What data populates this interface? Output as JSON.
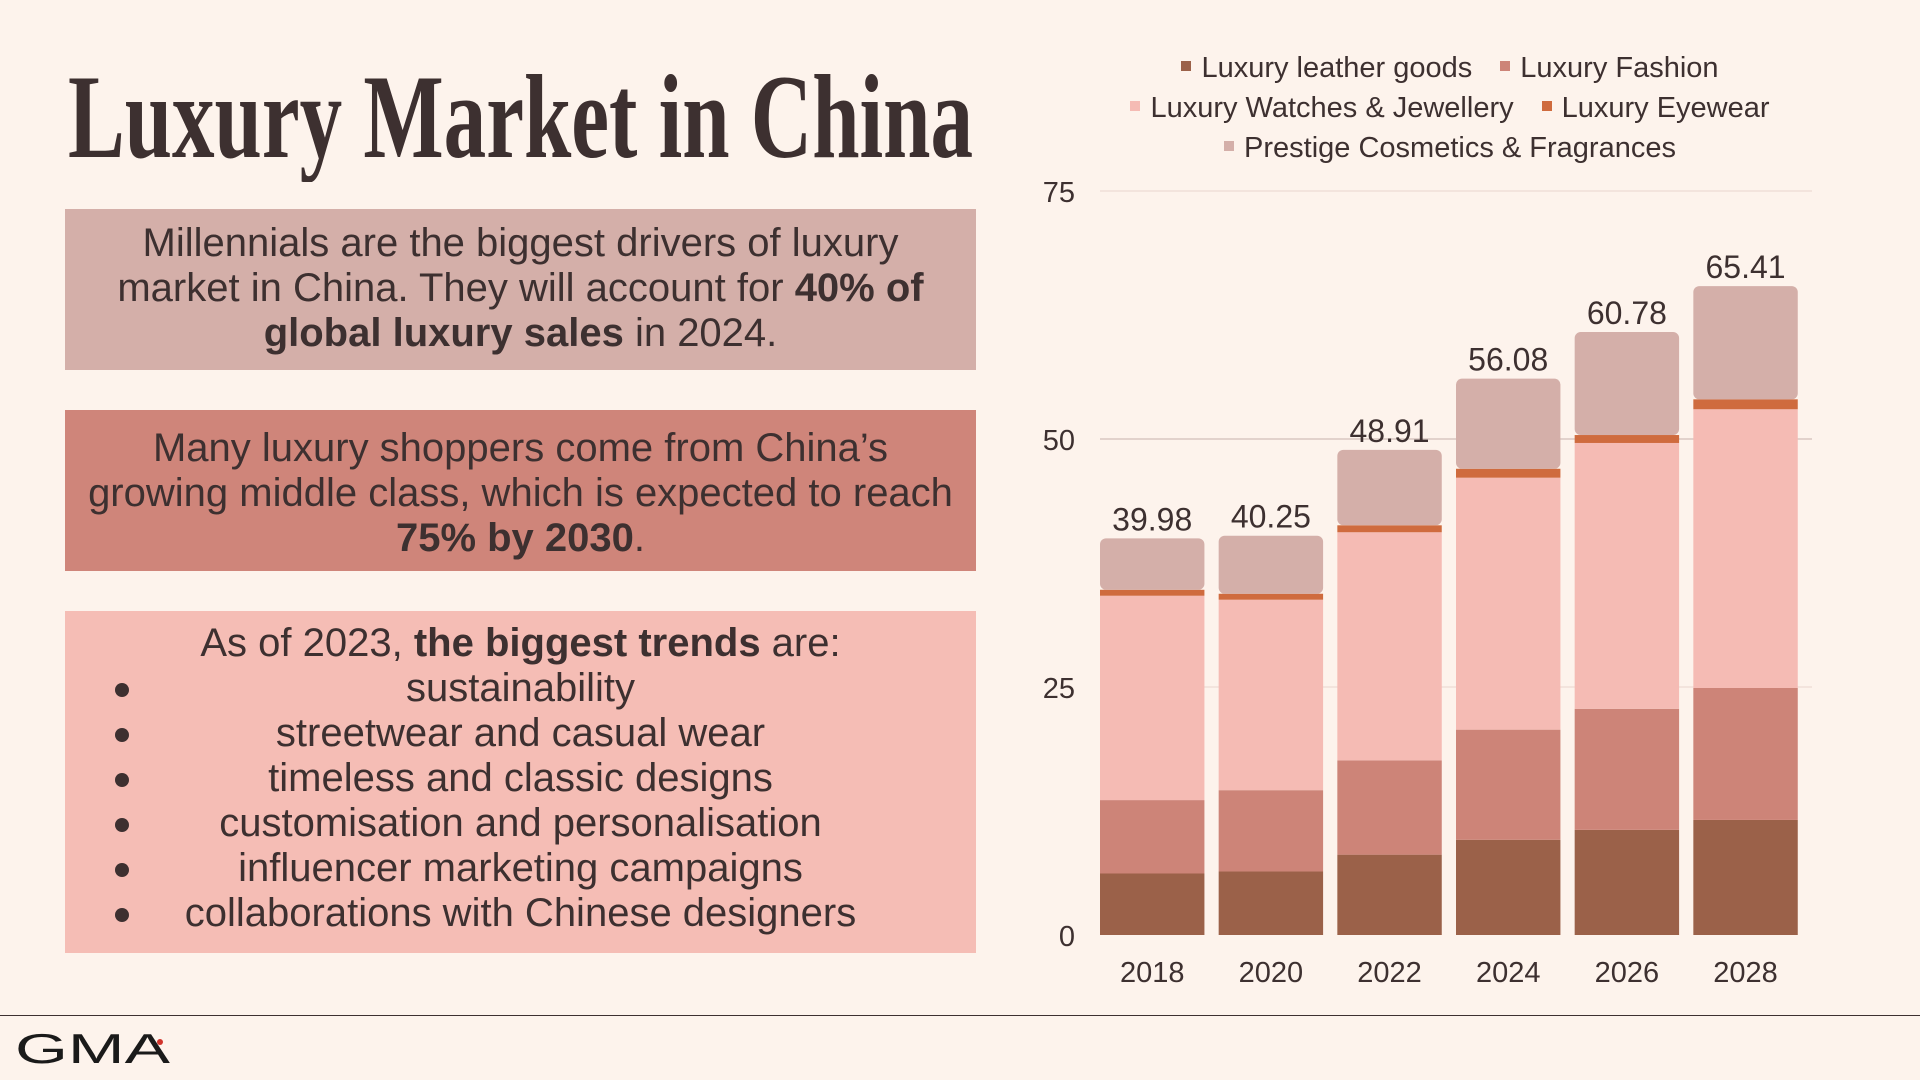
{
  "title": "Luxury Market in China",
  "box1": {
    "pre": "Millennials are the biggest drivers of luxury market in China. They will account for ",
    "bold": "40% of global luxury sales",
    "post": " in 2024."
  },
  "box2": {
    "pre": "Many luxury shoppers come from China’s growing middle class, which is expected to reach ",
    "bold": "75% by 2030",
    "post": "."
  },
  "box3": {
    "intro_pre": "As of 2023, ",
    "intro_bold": "the biggest trends",
    "intro_post": " are:",
    "trends": [
      "sustainability",
      "streetwear and casual wear",
      "timeless and classic designs",
      "customisation and personalisation",
      "influencer marketing campaigns",
      "collaborations with Chinese designers"
    ]
  },
  "logo": "GMA",
  "colors": {
    "background": "#fdf3ec",
    "text": "#3d3030",
    "box1": "#d4afa9",
    "box2": "#cf857a",
    "box3": "#f5bdb5",
    "logo_accent": "#d0342c"
  },
  "chart_data": {
    "type": "bar",
    "stacked": true,
    "categories": [
      "2018",
      "2020",
      "2022",
      "2024",
      "2026",
      "2028"
    ],
    "ylim": [
      0,
      75
    ],
    "yticks": [
      0,
      25,
      50,
      75
    ],
    "grid": true,
    "legend_placement": "top",
    "totals": [
      "39.98",
      "40.25",
      "48.91",
      "56.08",
      "60.78",
      "65.41"
    ],
    "series": [
      {
        "name": "Luxury leather goods",
        "color": "#9b6149",
        "values": [
          6.2,
          6.4,
          8.1,
          9.6,
          10.6,
          11.6
        ]
      },
      {
        "name": "Luxury Fashion",
        "color": "#cd8478",
        "values": [
          7.4,
          8.2,
          9.5,
          11.1,
          12.2,
          13.3
        ]
      },
      {
        "name": "Luxury Watches & Jewellery",
        "color": "#f5bbb4",
        "values": [
          20.6,
          19.2,
          23.0,
          25.4,
          26.8,
          28.1
        ]
      },
      {
        "name": "Luxury Eyewear",
        "color": "#cf6b3e",
        "values": [
          0.6,
          0.6,
          0.7,
          0.9,
          0.8,
          1.0
        ]
      },
      {
        "name": "Prestige Cosmetics & Fragrances",
        "color": "#d4afa9",
        "values": [
          5.18,
          5.85,
          7.61,
          9.08,
          10.38,
          11.41
        ]
      }
    ]
  }
}
